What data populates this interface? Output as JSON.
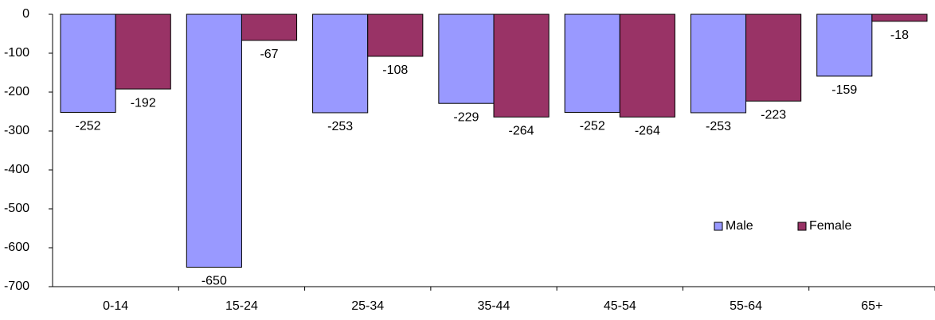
{
  "chart_data": {
    "type": "bar",
    "categories": [
      "0-14",
      "15-24",
      "25-34",
      "35-44",
      "45-54",
      "55-64",
      "65+"
    ],
    "series": [
      {
        "name": "Male",
        "color": "#9999ff",
        "values": [
          -252,
          -650,
          -253,
          -229,
          -252,
          -253,
          -159
        ]
      },
      {
        "name": "Female",
        "color": "#993366",
        "values": [
          -192,
          -67,
          -108,
          -264,
          -264,
          -223,
          -18
        ]
      }
    ],
    "ylim": [
      -700,
      0
    ],
    "yticks": [
      0,
      -100,
      -200,
      -300,
      -400,
      -500,
      -600,
      -700
    ],
    "grid": false,
    "legend": "right"
  }
}
